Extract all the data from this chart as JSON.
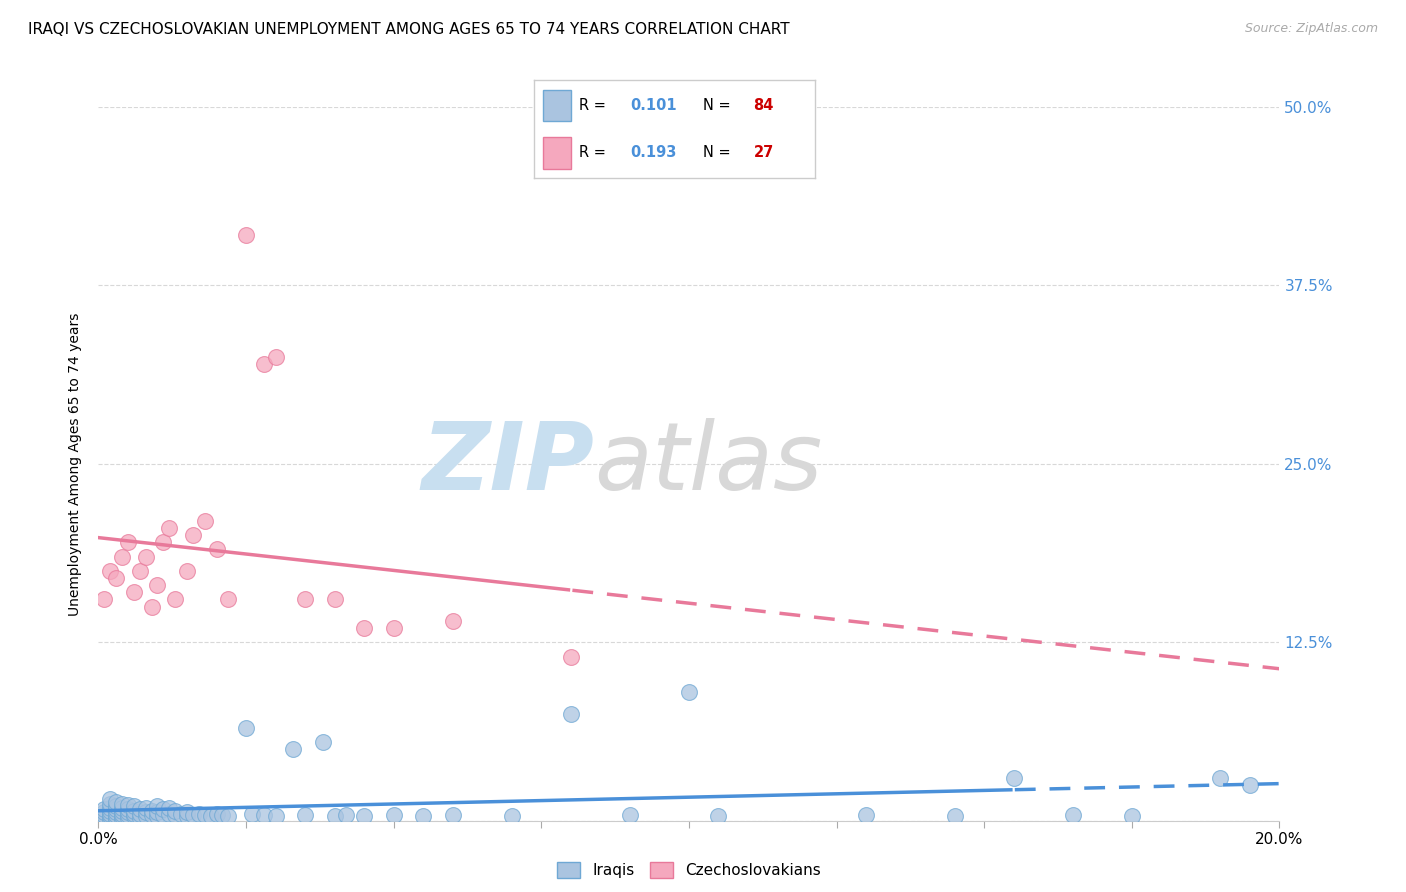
{
  "title": "IRAQI VS CZECHOSLOVAKIAN UNEMPLOYMENT AMONG AGES 65 TO 74 YEARS CORRELATION CHART",
  "source": "Source: ZipAtlas.com",
  "ylabel": "Unemployment Among Ages 65 to 74 years",
  "xlim": [
    0.0,
    0.2
  ],
  "ylim": [
    0.0,
    0.5
  ],
  "background_color": "#ffffff",
  "grid_color": "#d8d8d8",
  "iraqis_color": "#aac4e0",
  "iraqis_edge_color": "#6fa8d4",
  "czechoslovakians_color": "#f5a8be",
  "czechoslovakians_edge_color": "#e8799a",
  "iraqis_line_color": "#4a90d9",
  "czechoslovakians_line_color": "#e8799a",
  "legend_R_color": "#4a90d9",
  "legend_N_color": "#cc0000",
  "title_fontsize": 11,
  "axis_label_fontsize": 10,
  "tick_label_fontsize": 11,
  "watermark_zip_color": "#c8dff0",
  "watermark_atlas_color": "#d8d8d8",
  "iraqis_x": [
    0.001,
    0.001,
    0.001,
    0.001,
    0.002,
    0.002,
    0.002,
    0.002,
    0.002,
    0.002,
    0.002,
    0.003,
    0.003,
    0.003,
    0.003,
    0.003,
    0.003,
    0.003,
    0.004,
    0.004,
    0.004,
    0.004,
    0.004,
    0.004,
    0.005,
    0.005,
    0.005,
    0.005,
    0.005,
    0.006,
    0.006,
    0.006,
    0.006,
    0.007,
    0.007,
    0.007,
    0.008,
    0.008,
    0.008,
    0.009,
    0.009,
    0.01,
    0.01,
    0.01,
    0.011,
    0.011,
    0.012,
    0.012,
    0.013,
    0.013,
    0.014,
    0.015,
    0.015,
    0.016,
    0.017,
    0.018,
    0.019,
    0.02,
    0.021,
    0.022,
    0.025,
    0.026,
    0.028,
    0.03,
    0.033,
    0.035,
    0.038,
    0.04,
    0.042,
    0.045,
    0.05,
    0.055,
    0.06,
    0.07,
    0.08,
    0.09,
    0.1,
    0.105,
    0.13,
    0.145,
    0.155,
    0.165,
    0.175,
    0.19,
    0.195
  ],
  "iraqis_y": [
    0.002,
    0.004,
    0.006,
    0.008,
    0.001,
    0.003,
    0.005,
    0.007,
    0.009,
    0.012,
    0.015,
    0.001,
    0.002,
    0.004,
    0.006,
    0.008,
    0.01,
    0.013,
    0.001,
    0.003,
    0.005,
    0.007,
    0.009,
    0.012,
    0.002,
    0.004,
    0.006,
    0.008,
    0.011,
    0.003,
    0.005,
    0.007,
    0.01,
    0.002,
    0.005,
    0.008,
    0.003,
    0.006,
    0.009,
    0.004,
    0.007,
    0.003,
    0.006,
    0.01,
    0.004,
    0.008,
    0.005,
    0.009,
    0.004,
    0.007,
    0.005,
    0.003,
    0.006,
    0.004,
    0.005,
    0.004,
    0.003,
    0.005,
    0.004,
    0.003,
    0.065,
    0.005,
    0.004,
    0.003,
    0.05,
    0.004,
    0.055,
    0.003,
    0.004,
    0.003,
    0.004,
    0.003,
    0.004,
    0.003,
    0.075,
    0.004,
    0.09,
    0.003,
    0.004,
    0.003,
    0.03,
    0.004,
    0.003,
    0.03,
    0.025
  ],
  "czechoslovakians_x": [
    0.001,
    0.002,
    0.003,
    0.004,
    0.005,
    0.006,
    0.007,
    0.008,
    0.009,
    0.01,
    0.011,
    0.012,
    0.013,
    0.015,
    0.016,
    0.018,
    0.02,
    0.022,
    0.025,
    0.028,
    0.03,
    0.035,
    0.04,
    0.045,
    0.05,
    0.06,
    0.08
  ],
  "czechoslovakians_y": [
    0.155,
    0.175,
    0.17,
    0.185,
    0.195,
    0.16,
    0.175,
    0.185,
    0.15,
    0.165,
    0.195,
    0.205,
    0.155,
    0.175,
    0.2,
    0.21,
    0.19,
    0.155,
    0.41,
    0.32,
    0.325,
    0.155,
    0.155,
    0.135,
    0.135,
    0.14,
    0.115
  ]
}
